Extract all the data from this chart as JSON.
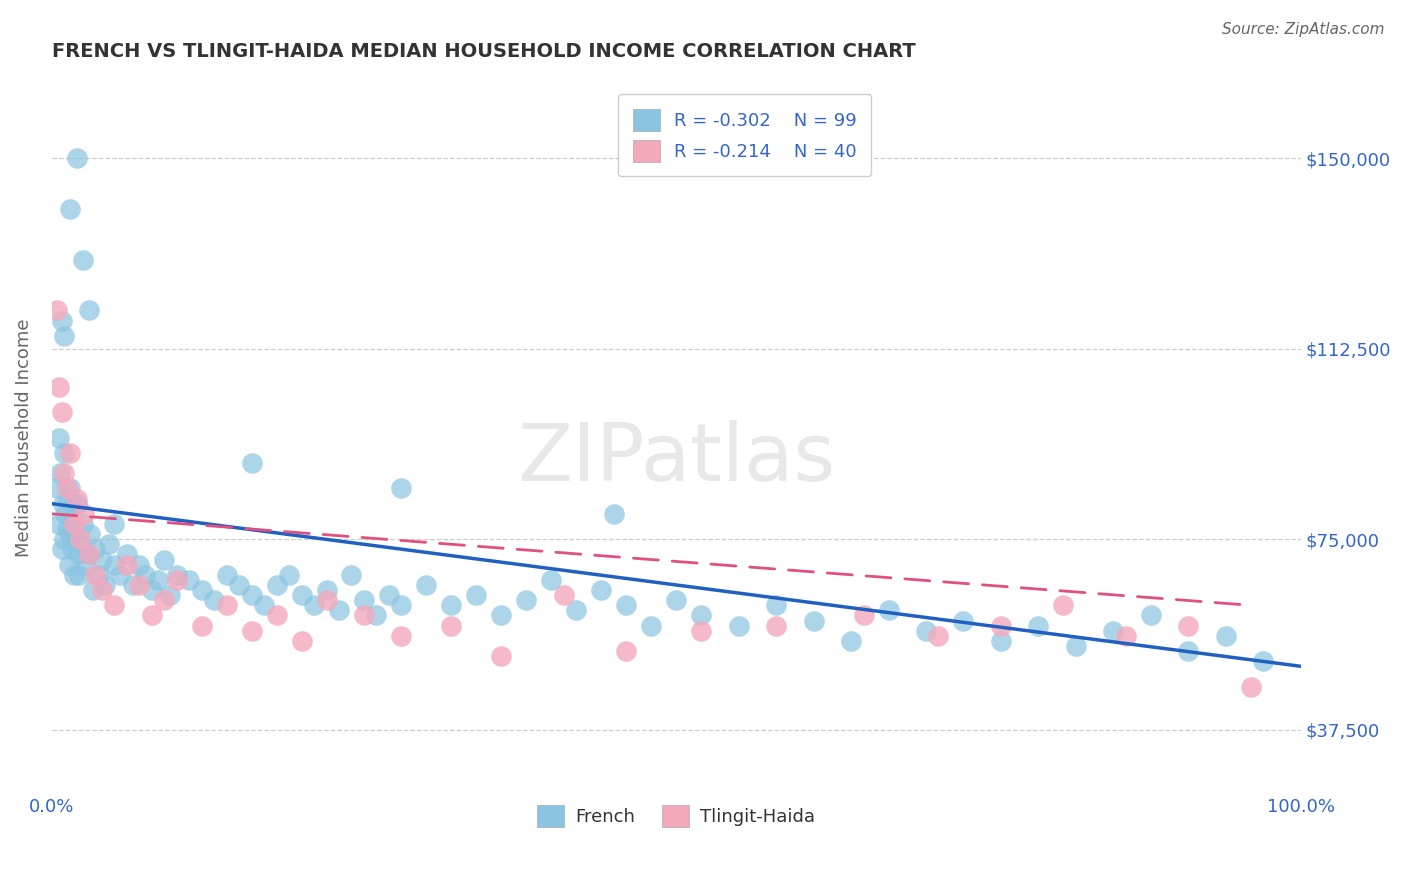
{
  "title": "FRENCH VS TLINGIT-HAIDA MEDIAN HOUSEHOLD INCOME CORRELATION CHART",
  "source_text": "Source: ZipAtlas.com",
  "ylabel": "Median Household Income",
  "xlim": [
    0.0,
    100.0
  ],
  "ylim": [
    25000,
    165000
  ],
  "yticks": [
    37500,
    75000,
    112500,
    150000
  ],
  "ytick_labels": [
    "$37,500",
    "$75,000",
    "$112,500",
    "$150,000"
  ],
  "xtick_labels": [
    "0.0%",
    "100.0%"
  ],
  "french_R": -0.302,
  "french_N": 99,
  "tlingit_R": -0.214,
  "tlingit_N": 40,
  "french_color": "#89c4e1",
  "tlingit_color": "#f4a8bc",
  "french_line_color": "#2060c0",
  "tlingit_line_color": "#e05080",
  "background_color": "#ffffff",
  "grid_color": "#cccccc",
  "title_color": "#333333",
  "axis_label_color": "#666666",
  "tick_label_color": "#3366cc",
  "legend_r_color": "#3366cc",
  "watermark_color": "#e8e8e8",
  "french_line_y0": 82000,
  "french_line_y1": 50000,
  "tlingit_line_y0": 80000,
  "tlingit_line_y1": 62000,
  "french_scatter_x": [
    0.4,
    0.5,
    0.6,
    0.7,
    0.8,
    0.9,
    1.0,
    1.0,
    1.1,
    1.2,
    1.3,
    1.4,
    1.5,
    1.6,
    1.7,
    1.8,
    1.9,
    2.0,
    2.1,
    2.2,
    2.3,
    2.5,
    2.7,
    2.9,
    3.1,
    3.3,
    3.5,
    3.8,
    4.0,
    4.3,
    4.6,
    5.0,
    5.5,
    6.0,
    6.5,
    7.0,
    7.5,
    8.0,
    8.5,
    9.0,
    9.5,
    10.0,
    11.0,
    12.0,
    13.0,
    14.0,
    15.0,
    16.0,
    17.0,
    18.0,
    19.0,
    20.0,
    21.0,
    22.0,
    23.0,
    24.0,
    25.0,
    26.0,
    27.0,
    28.0,
    30.0,
    32.0,
    34.0,
    36.0,
    38.0,
    40.0,
    42.0,
    44.0,
    46.0,
    48.0,
    50.0,
    52.0,
    55.0,
    58.0,
    61.0,
    64.0,
    67.0,
    70.0,
    73.0,
    76.0,
    79.0,
    82.0,
    85.0,
    88.0,
    91.0,
    94.0,
    97.0,
    1.5,
    2.0,
    2.5,
    3.0,
    1.0,
    0.8,
    45.0,
    28.0,
    16.0,
    5.0,
    2.0,
    1.5
  ],
  "french_scatter_y": [
    85000,
    78000,
    95000,
    88000,
    73000,
    82000,
    92000,
    75000,
    80000,
    77000,
    83000,
    70000,
    85000,
    73000,
    79000,
    68000,
    76000,
    82000,
    72000,
    68000,
    74000,
    78000,
    70000,
    72000,
    76000,
    65000,
    73000,
    68000,
    71000,
    66000,
    74000,
    70000,
    68000,
    72000,
    66000,
    70000,
    68000,
    65000,
    67000,
    71000,
    64000,
    68000,
    67000,
    65000,
    63000,
    68000,
    66000,
    64000,
    62000,
    66000,
    68000,
    64000,
    62000,
    65000,
    61000,
    68000,
    63000,
    60000,
    64000,
    62000,
    66000,
    62000,
    64000,
    60000,
    63000,
    67000,
    61000,
    65000,
    62000,
    58000,
    63000,
    60000,
    58000,
    62000,
    59000,
    55000,
    61000,
    57000,
    59000,
    55000,
    58000,
    54000,
    57000,
    60000,
    53000,
    56000,
    51000,
    140000,
    150000,
    130000,
    120000,
    115000,
    118000,
    80000,
    85000,
    90000,
    78000,
    82000,
    76000
  ],
  "tlingit_scatter_x": [
    0.4,
    0.6,
    0.8,
    1.0,
    1.2,
    1.5,
    1.8,
    2.0,
    2.3,
    2.6,
    3.0,
    3.5,
    4.0,
    5.0,
    6.0,
    7.0,
    8.0,
    9.0,
    10.0,
    12.0,
    14.0,
    16.0,
    18.0,
    20.0,
    22.0,
    25.0,
    28.0,
    32.0,
    36.0,
    41.0,
    46.0,
    52.0,
    58.0,
    65.0,
    71.0,
    76.0,
    81.0,
    86.0,
    91.0,
    96.0
  ],
  "tlingit_scatter_y": [
    120000,
    105000,
    100000,
    88000,
    85000,
    92000,
    78000,
    83000,
    75000,
    80000,
    72000,
    68000,
    65000,
    62000,
    70000,
    66000,
    60000,
    63000,
    67000,
    58000,
    62000,
    57000,
    60000,
    55000,
    63000,
    60000,
    56000,
    58000,
    52000,
    64000,
    53000,
    57000,
    58000,
    60000,
    56000,
    58000,
    62000,
    56000,
    58000,
    46000
  ]
}
